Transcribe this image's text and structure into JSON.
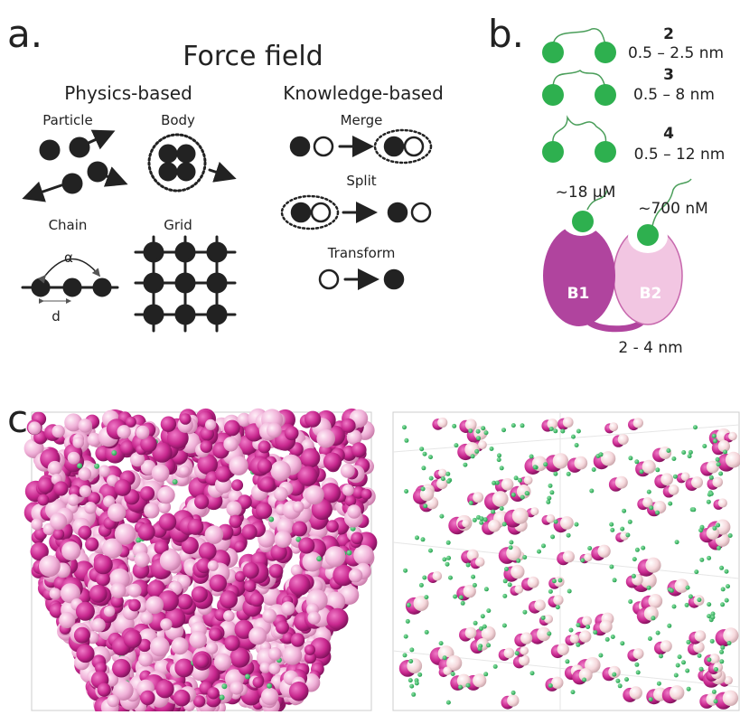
{
  "panel_a": {
    "label": "a.",
    "title": "Force field",
    "physics_heading": "Physics-based",
    "particle": "Particle",
    "body": "Body",
    "chain": "Chain",
    "grid": "Grid",
    "angle": "α",
    "distance": "d",
    "knowledge_heading": "Knowledge-based",
    "merge": "Merge",
    "split": "Split",
    "transform": "Transform"
  },
  "panel_b": {
    "label": "b.",
    "linkers": [
      {
        "number": "2",
        "range": "0.5 – 2.5 nm"
      },
      {
        "number": "3",
        "range": "0.5 – 8 nm"
      },
      {
        "number": "4",
        "range": "0.5 – 12 nm"
      }
    ],
    "affinity_b1": "~18 µM",
    "affinity_b2": "~700 nM",
    "domain_1": "B1",
    "domain_2": "B2",
    "spacing": "2 - 4 nm"
  },
  "panel_c": {
    "label": "c."
  }
}
